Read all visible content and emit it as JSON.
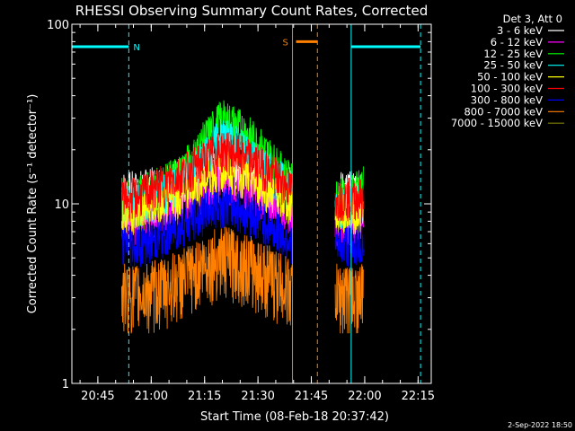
{
  "chart_data": {
    "type": "line",
    "title": "RHESSI Observing Summary Count Rates, Corrected",
    "xlabel": "Start Time (08-Feb-18 20:37:42)",
    "ylabel": "Corrected Count Rate (s⁻¹ detector⁻¹)",
    "yscale": "log",
    "ylim": [
      1,
      100
    ],
    "xlim_minutes": [
      0,
      101
    ],
    "x_ticks": [
      {
        "minute": 7.3,
        "label": "20:45"
      },
      {
        "minute": 22.3,
        "label": "21:00"
      },
      {
        "minute": 37.3,
        "label": "21:15"
      },
      {
        "minute": 52.3,
        "label": "21:30"
      },
      {
        "minute": 67.3,
        "label": "21:45"
      },
      {
        "minute": 82.3,
        "label": "22:00"
      },
      {
        "minute": 97.3,
        "label": "22:15"
      }
    ],
    "y_ticks": [
      {
        "value": 1,
        "label": "1"
      },
      {
        "value": 10,
        "label": "10"
      },
      {
        "value": 100,
        "label": "100"
      }
    ],
    "legend_header": "Det 3, Att 0",
    "series": [
      {
        "name": "3 - 6 keV",
        "color": "#ffffff",
        "minutes": [
          14,
          18,
          22,
          26,
          30,
          34,
          38,
          42,
          46,
          50,
          54,
          58,
          62,
          74,
          78,
          82
        ],
        "values": [
          12,
          12,
          12.5,
          13,
          14,
          15,
          17,
          19,
          18,
          16,
          14,
          13,
          12.5,
          12,
          12,
          12
        ]
      },
      {
        "name": "6 - 12 keV",
        "color": "#ff00ff",
        "minutes": [
          14,
          18,
          22,
          26,
          30,
          34,
          38,
          42,
          46,
          50,
          54,
          58,
          62,
          74,
          78,
          82
        ],
        "values": [
          8,
          8,
          8.5,
          9,
          10,
          11,
          12.5,
          14,
          13,
          12,
          11,
          10,
          9,
          8,
          8,
          8
        ]
      },
      {
        "name": "12 - 25 keV",
        "color": "#00ff00",
        "minutes": [
          14,
          18,
          22,
          26,
          30,
          34,
          38,
          42,
          46,
          50,
          54,
          58,
          62,
          74,
          78,
          82
        ],
        "values": [
          11,
          11,
          12,
          13,
          15,
          18,
          24,
          30,
          28,
          24,
          20,
          16,
          13,
          11,
          11,
          13
        ]
      },
      {
        "name": "25 - 50 keV",
        "color": "#00ffff",
        "minutes": [
          14,
          18,
          22,
          26,
          30,
          34,
          38,
          42,
          46,
          50,
          54,
          58,
          62,
          74,
          78,
          82
        ],
        "values": [
          10,
          10,
          10.5,
          11.5,
          13,
          15,
          19,
          24,
          22,
          19,
          16,
          14,
          12,
          10,
          10,
          10
        ]
      },
      {
        "name": "50 - 100 keV",
        "color": "#ffff00",
        "minutes": [
          14,
          18,
          22,
          26,
          30,
          34,
          38,
          42,
          46,
          50,
          54,
          58,
          62,
          74,
          78,
          82
        ],
        "values": [
          9,
          9,
          9.5,
          10,
          11,
          12.5,
          14,
          16,
          15,
          14,
          12.5,
          11,
          10,
          9,
          9,
          9
        ]
      },
      {
        "name": "100 - 300 keV",
        "color": "#ff0000",
        "minutes": [
          14,
          18,
          22,
          26,
          30,
          34,
          38,
          42,
          46,
          50,
          54,
          58,
          62,
          74,
          78,
          82
        ],
        "values": [
          11,
          11,
          12,
          13,
          14.5,
          16,
          18,
          20,
          19.5,
          18,
          16,
          14,
          12,
          11,
          11,
          11
        ]
      },
      {
        "name": "300 - 800 keV",
        "color": "#0000ff",
        "minutes": [
          14,
          18,
          22,
          26,
          30,
          34,
          38,
          42,
          46,
          50,
          54,
          58,
          62,
          74,
          78,
          82
        ],
        "values": [
          6,
          6,
          6.3,
          6.8,
          7.5,
          8.3,
          9.3,
          10,
          9.6,
          9,
          8,
          7,
          6.3,
          6,
          6,
          6
        ]
      },
      {
        "name": "800 - 7000 keV",
        "color": "#ff8000",
        "minutes": [
          14,
          18,
          22,
          26,
          30,
          34,
          38,
          42,
          46,
          50,
          54,
          58,
          62,
          74,
          78,
          82
        ],
        "values": [
          3.2,
          3.2,
          3.3,
          3.5,
          3.8,
          4.2,
          4.8,
          5.2,
          5,
          4.6,
          4.2,
          3.8,
          3.4,
          3.2,
          3.2,
          3.2
        ]
      },
      {
        "name": "7000 - 15000 keV",
        "color": "#808000",
        "minutes": [],
        "values": []
      }
    ],
    "annotations": [
      {
        "type": "night",
        "label": "N",
        "start_minute": 0,
        "end_minute": 16,
        "color": "#00ffff"
      },
      {
        "type": "night",
        "label": "",
        "start_minute": 78.5,
        "end_minute": 98,
        "color": "#00ffff"
      },
      {
        "type": "saa",
        "label": "S",
        "start_minute": 62,
        "end_minute": 69,
        "color": "#ff8000"
      }
    ]
  },
  "footer": {
    "date_stamp": "2-Sep-2022 18:50"
  }
}
